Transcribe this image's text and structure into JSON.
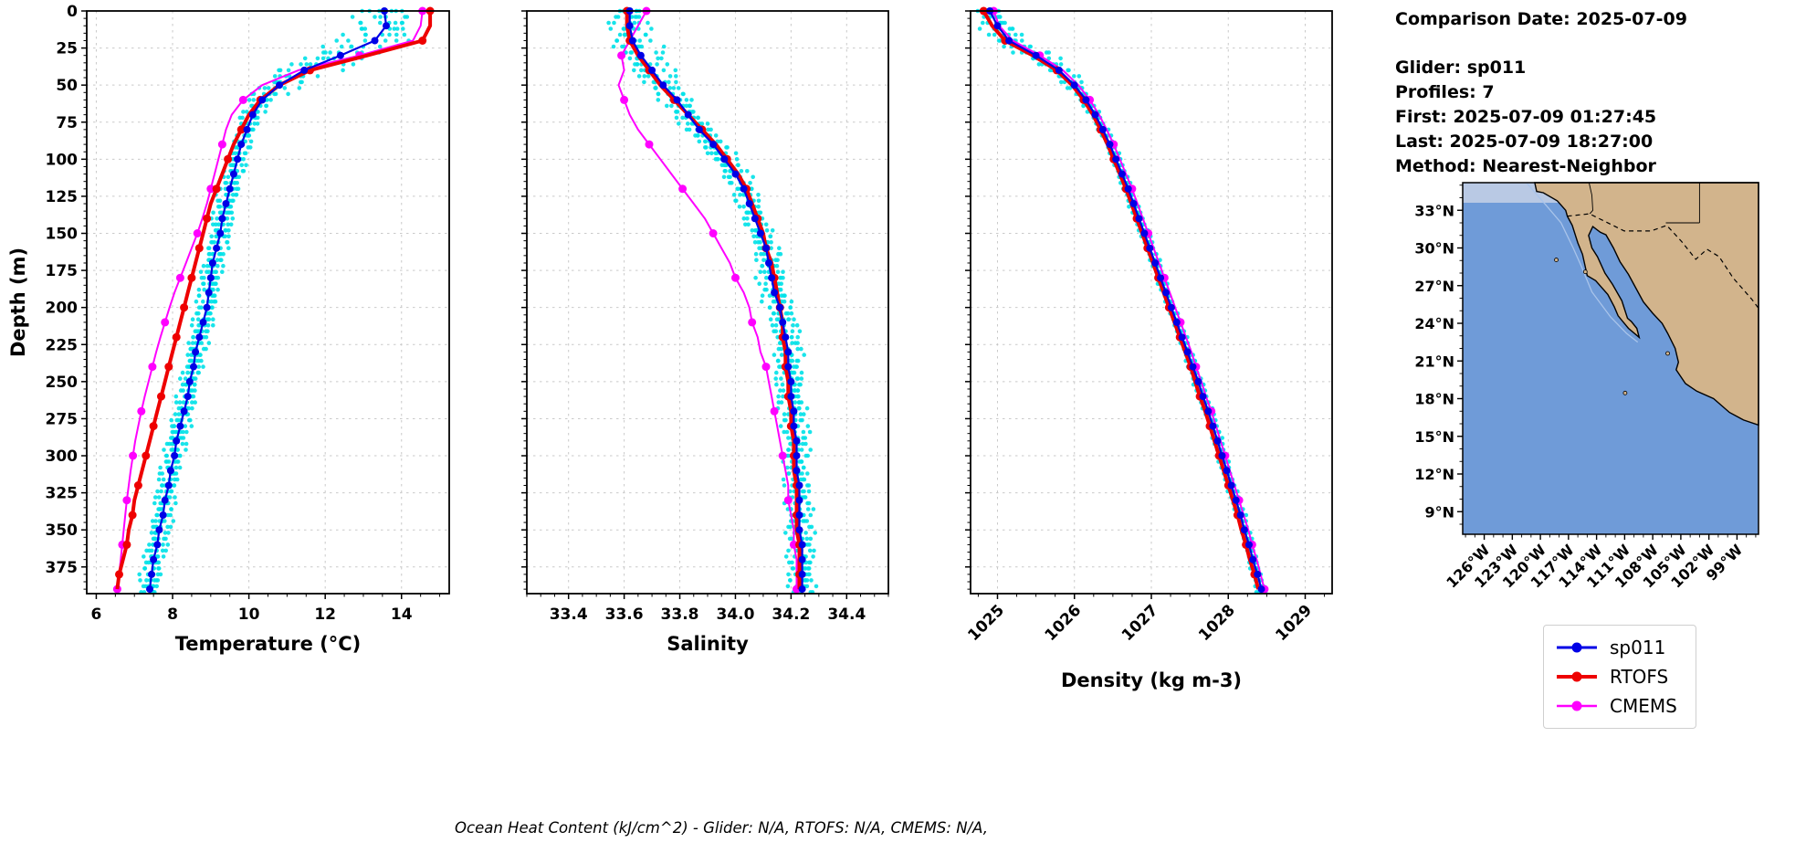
{
  "figure": {
    "background": "#ffffff"
  },
  "info": {
    "comparison_date": "Comparison Date: 2025-07-09",
    "glider": "Glider: sp011",
    "profiles": "Profiles: 7",
    "first": "First: 2025-07-09 01:27:45",
    "last": "Last: 2025-07-09 18:27:00",
    "method": "Method: Nearest-Neighbor"
  },
  "caption": "Ocean Heat Content (kJ/cm^2) - Glider: N/A,  RTOFS: N/A,  CMEMS: N/A,",
  "legend": {
    "items": [
      {
        "label": "sp011",
        "color": "#0000e6",
        "line_width": 3
      },
      {
        "label": "RTOFS",
        "color": "#ee0000",
        "line_width": 4
      },
      {
        "label": "CMEMS",
        "color": "#ff00ff",
        "line_width": 2.5
      }
    ]
  },
  "depth_axis": {
    "label": "Depth (m)",
    "lim": [
      0,
      393
    ],
    "minor_step": 5,
    "tick_values": [
      0,
      25,
      50,
      75,
      100,
      125,
      150,
      175,
      200,
      225,
      250,
      275,
      300,
      325,
      350,
      375
    ],
    "tick_labels": [
      "0",
      "25",
      "50",
      "75",
      "100",
      "125",
      "150",
      "175",
      "200",
      "225",
      "250",
      "275",
      "300",
      "325",
      "350",
      "375"
    ],
    "depths": [
      0,
      10,
      20,
      30,
      40,
      50,
      60,
      70,
      80,
      90,
      100,
      110,
      120,
      130,
      140,
      150,
      160,
      170,
      180,
      190,
      200,
      210,
      220,
      230,
      240,
      250,
      260,
      270,
      280,
      290,
      300,
      310,
      320,
      330,
      340,
      350,
      360,
      370,
      380,
      390
    ]
  },
  "chart_data": [
    {
      "type": "line",
      "title": "",
      "xlabel": "Temperature (°C)",
      "ylabel": "Depth (m)",
      "xlim": [
        5.75,
        15.25
      ],
      "xtick_values": [
        6,
        8,
        10,
        12,
        14
      ],
      "xtick_labels": [
        "6",
        "8",
        "10",
        "12",
        "14"
      ],
      "x_minor_step": 0.5,
      "rotate_xticklabels": false,
      "show_ytick_labels": true,
      "grid": true,
      "series": [
        {
          "name": "sp011",
          "color": "#0000e6",
          "line_width": 2.2,
          "marker_radius": 4,
          "marker_every": 1,
          "values": [
            13.55,
            13.6,
            13.3,
            12.4,
            11.45,
            10.8,
            10.35,
            10.1,
            9.95,
            9.8,
            9.7,
            9.6,
            9.5,
            9.4,
            9.3,
            9.25,
            9.15,
            9.05,
            9.0,
            8.95,
            8.9,
            8.8,
            8.7,
            8.6,
            8.55,
            8.45,
            8.4,
            8.3,
            8.2,
            8.1,
            8.05,
            7.95,
            7.9,
            7.8,
            7.75,
            7.65,
            7.6,
            7.5,
            7.45,
            7.4
          ]
        },
        {
          "name": "RTOFS",
          "color": "#ee0000",
          "line_width": 4,
          "marker_radius": 4.5,
          "marker_every": 2,
          "values": [
            14.75,
            14.75,
            14.55,
            13.1,
            11.6,
            10.8,
            10.3,
            10.0,
            9.8,
            9.6,
            9.45,
            9.3,
            9.15,
            9.0,
            8.9,
            8.8,
            8.7,
            8.6,
            8.5,
            8.4,
            8.3,
            8.2,
            8.1,
            8.0,
            7.9,
            7.8,
            7.7,
            7.6,
            7.5,
            7.4,
            7.3,
            7.2,
            7.1,
            7.0,
            6.95,
            6.85,
            6.8,
            6.7,
            6.6,
            6.55
          ]
        },
        {
          "name": "CMEMS",
          "color": "#ff00ff",
          "line_width": 2,
          "marker_radius": 4.5,
          "marker_every": 3,
          "values": [
            14.55,
            14.5,
            14.3,
            12.9,
            11.3,
            10.35,
            9.85,
            9.55,
            9.4,
            9.3,
            9.2,
            9.1,
            9.0,
            8.9,
            8.78,
            8.65,
            8.5,
            8.35,
            8.2,
            8.05,
            7.92,
            7.8,
            7.68,
            7.57,
            7.47,
            7.37,
            7.27,
            7.18,
            7.1,
            7.02,
            6.96,
            6.9,
            6.85,
            6.8,
            6.76,
            6.72,
            6.68,
            6.64,
            6.6,
            6.55
          ]
        }
      ],
      "scatter": {
        "name": "glider-raw-profiles",
        "color": "#00e1e8",
        "profiles": 7,
        "amp_deep": 0.3,
        "amp_therm": 0.85,
        "seed": 1
      }
    },
    {
      "type": "line",
      "title": "",
      "xlabel": "Salinity",
      "ylabel": "Depth (m)",
      "xlim": [
        33.25,
        34.55
      ],
      "xtick_values": [
        33.4,
        33.6,
        33.8,
        34.0,
        34.2,
        34.4
      ],
      "xtick_labels": [
        "33.4",
        "33.6",
        "33.8",
        "34.0",
        "34.2",
        "34.4"
      ],
      "x_minor_step": 0.05,
      "rotate_xticklabels": false,
      "show_ytick_labels": false,
      "grid": true,
      "series": [
        {
          "name": "sp011",
          "color": "#0000e6",
          "line_width": 2.2,
          "marker_radius": 4,
          "marker_every": 1,
          "values": [
            33.62,
            33.62,
            33.63,
            33.66,
            33.7,
            33.74,
            33.79,
            33.83,
            33.87,
            33.92,
            33.96,
            34.0,
            34.03,
            34.05,
            34.07,
            34.09,
            34.11,
            34.12,
            34.13,
            34.14,
            34.16,
            34.17,
            34.18,
            34.19,
            34.19,
            34.2,
            34.2,
            34.21,
            34.21,
            34.22,
            34.22,
            34.22,
            34.23,
            34.23,
            34.23,
            34.23,
            34.24,
            34.24,
            34.24,
            34.24
          ]
        },
        {
          "name": "RTOFS",
          "color": "#ee0000",
          "line_width": 4,
          "marker_radius": 4.5,
          "marker_every": 2,
          "values": [
            33.61,
            33.61,
            33.62,
            33.65,
            33.69,
            33.73,
            33.78,
            33.83,
            33.88,
            33.93,
            33.97,
            34.01,
            34.04,
            34.06,
            34.08,
            34.1,
            34.11,
            34.13,
            34.14,
            34.15,
            34.16,
            34.17,
            34.17,
            34.18,
            34.18,
            34.19,
            34.19,
            34.2,
            34.2,
            34.21,
            34.21,
            34.21,
            34.22,
            34.22,
            34.22,
            34.22,
            34.23,
            34.23,
            34.23,
            34.23
          ]
        },
        {
          "name": "CMEMS",
          "color": "#ff00ff",
          "line_width": 2,
          "marker_radius": 4.5,
          "marker_every": 3,
          "values": [
            33.68,
            33.65,
            33.62,
            33.59,
            33.6,
            33.58,
            33.6,
            33.62,
            33.65,
            33.69,
            33.73,
            33.77,
            33.81,
            33.85,
            33.89,
            33.92,
            33.95,
            33.98,
            34.0,
            34.03,
            34.05,
            34.06,
            34.08,
            34.09,
            34.11,
            34.12,
            34.13,
            34.14,
            34.15,
            34.16,
            34.17,
            34.18,
            34.19,
            34.19,
            34.2,
            34.21,
            34.21,
            34.22,
            34.22,
            34.22
          ]
        }
      ],
      "scatter": {
        "name": "glider-raw-profiles",
        "color": "#00e1e8",
        "profiles": 7,
        "amp_deep": 0.055,
        "amp_therm": 0.04,
        "seed": 2
      }
    },
    {
      "type": "line",
      "title": "",
      "xlabel": "Density (kg m-3)",
      "ylabel": "Depth (m)",
      "xlim": [
        1024.65,
        1029.35
      ],
      "xtick_values": [
        1025,
        1026,
        1027,
        1028,
        1029
      ],
      "xtick_labels": [
        "1025",
        "1026",
        "1027",
        "1028",
        "1029"
      ],
      "x_minor_step": 0.25,
      "rotate_xticklabels": true,
      "show_ytick_labels": false,
      "grid": true,
      "series": [
        {
          "name": "sp011",
          "color": "#0000e6",
          "line_width": 2.2,
          "marker_radius": 4,
          "marker_every": 1,
          "values": [
            1024.9,
            1025.0,
            1025.15,
            1025.5,
            1025.8,
            1026.0,
            1026.15,
            1026.27,
            1026.37,
            1026.46,
            1026.54,
            1026.62,
            1026.7,
            1026.77,
            1026.84,
            1026.91,
            1026.98,
            1027.05,
            1027.12,
            1027.19,
            1027.26,
            1027.33,
            1027.4,
            1027.47,
            1027.54,
            1027.61,
            1027.67,
            1027.74,
            1027.8,
            1027.86,
            1027.92,
            1027.98,
            1028.04,
            1028.1,
            1028.16,
            1028.21,
            1028.27,
            1028.32,
            1028.38,
            1028.43
          ]
        },
        {
          "name": "RTOFS",
          "color": "#ee0000",
          "line_width": 4,
          "marker_radius": 4.5,
          "marker_every": 2,
          "values": [
            1024.82,
            1024.93,
            1025.1,
            1025.46,
            1025.77,
            1025.97,
            1026.12,
            1026.24,
            1026.34,
            1026.43,
            1026.51,
            1026.59,
            1026.67,
            1026.74,
            1026.81,
            1026.88,
            1026.95,
            1027.02,
            1027.09,
            1027.16,
            1027.23,
            1027.3,
            1027.37,
            1027.44,
            1027.51,
            1027.57,
            1027.63,
            1027.7,
            1027.76,
            1027.82,
            1027.88,
            1027.94,
            1028.0,
            1028.06,
            1028.12,
            1028.17,
            1028.23,
            1028.28,
            1028.34,
            1028.39
          ]
        },
        {
          "name": "CMEMS",
          "color": "#ff00ff",
          "line_width": 2,
          "marker_radius": 4.5,
          "marker_every": 3,
          "values": [
            1024.95,
            1025.02,
            1025.2,
            1025.55,
            1025.85,
            1026.05,
            1026.2,
            1026.32,
            1026.42,
            1026.51,
            1026.59,
            1026.67,
            1026.75,
            1026.82,
            1026.89,
            1026.96,
            1027.03,
            1027.1,
            1027.17,
            1027.24,
            1027.31,
            1027.38,
            1027.45,
            1027.52,
            1027.58,
            1027.65,
            1027.71,
            1027.78,
            1027.84,
            1027.9,
            1027.96,
            1028.02,
            1028.08,
            1028.14,
            1028.2,
            1028.26,
            1028.31,
            1028.37,
            1028.42,
            1028.47
          ]
        }
      ],
      "scatter": {
        "name": "glider-raw-profiles",
        "color": "#00e1e8",
        "profiles": 7,
        "amp_deep": 0.07,
        "amp_therm": 0.22,
        "seed": 3
      }
    }
  ],
  "map": {
    "lat_tick_values": [
      33,
      30,
      27,
      24,
      21,
      18,
      15,
      12,
      9
    ],
    "lat_tick_labels": [
      "33°N",
      "30°N",
      "27°N",
      "24°N",
      "21°N",
      "18°N",
      "15°N",
      "12°N",
      "9°N"
    ],
    "lon_tick_values": [
      -126,
      -123,
      -120,
      -117,
      -114,
      -111,
      -108,
      -105,
      -102,
      -99
    ],
    "lon_tick_labels": [
      "126°W",
      "123°W",
      "120°W",
      "117°W",
      "114°W",
      "111°W",
      "108°W",
      "105°W",
      "102°W",
      "99°W"
    ],
    "lon_range": [
      -128.3,
      -96.7
    ],
    "lat_range": [
      7.2,
      35.2
    ],
    "colors": {
      "ocean": "#6f9bd8",
      "land": "#d2b48c",
      "coast": "#000000",
      "shelf": "#a9c4ea",
      "band": "#b9c9e4"
    }
  }
}
